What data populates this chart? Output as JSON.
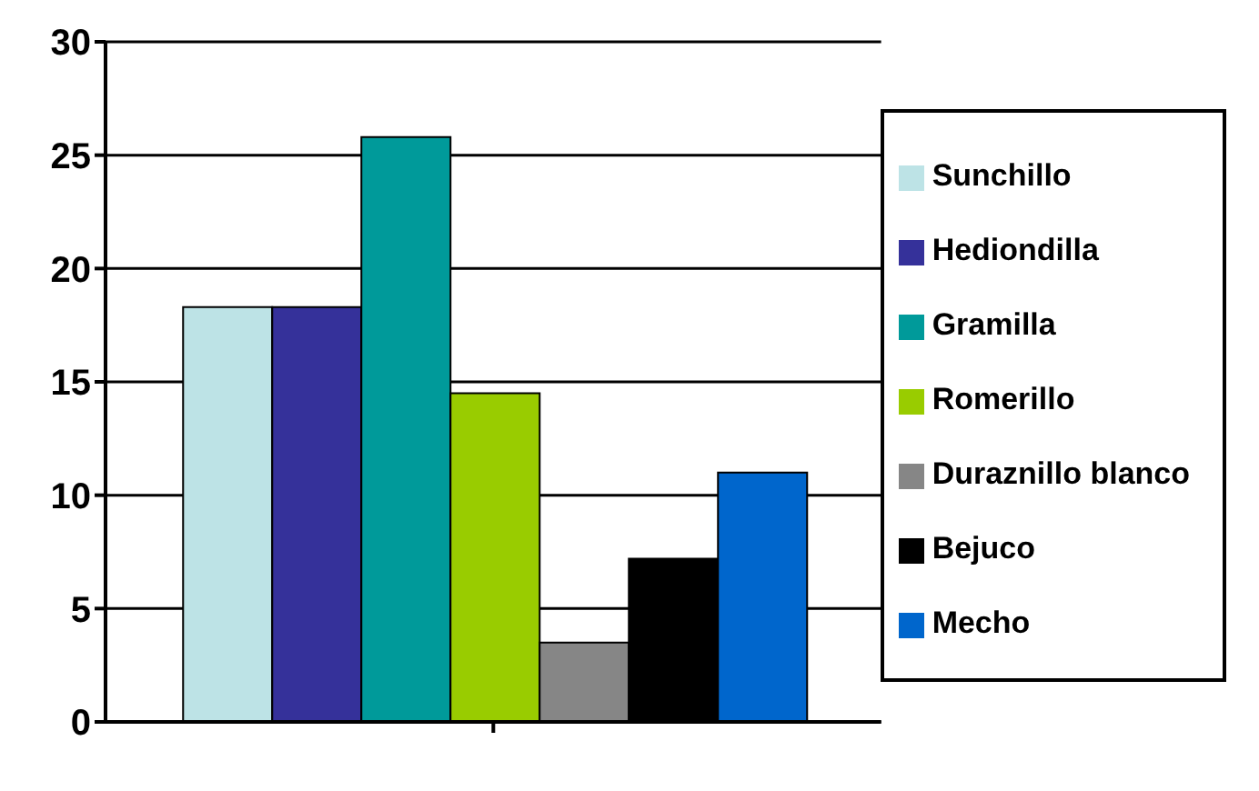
{
  "chart_data": {
    "type": "bar",
    "categories": [
      null
    ],
    "series": [
      {
        "name": "Sunchillo",
        "color": "#bde3e6",
        "values": [
          18.3
        ]
      },
      {
        "name": "Hediondilla",
        "color": "#35319a",
        "values": [
          18.3
        ]
      },
      {
        "name": "Gramilla",
        "color": "#009a9a",
        "values": [
          25.8
        ]
      },
      {
        "name": "Romerillo",
        "color": "#99cc00",
        "values": [
          14.5
        ]
      },
      {
        "name": "Duraznillo blanco",
        "color": "#868686",
        "values": [
          3.5
        ]
      },
      {
        "name": "Bejuco",
        "color": "#000000",
        "values": [
          7.2
        ]
      },
      {
        "name": "Mecho",
        "color": "#0066cc",
        "values": [
          11
        ]
      }
    ],
    "ylim": [
      0,
      30
    ],
    "yticks": [
      0,
      5,
      10,
      15,
      20,
      25,
      30
    ],
    "grid": "y",
    "legend": "right"
  }
}
